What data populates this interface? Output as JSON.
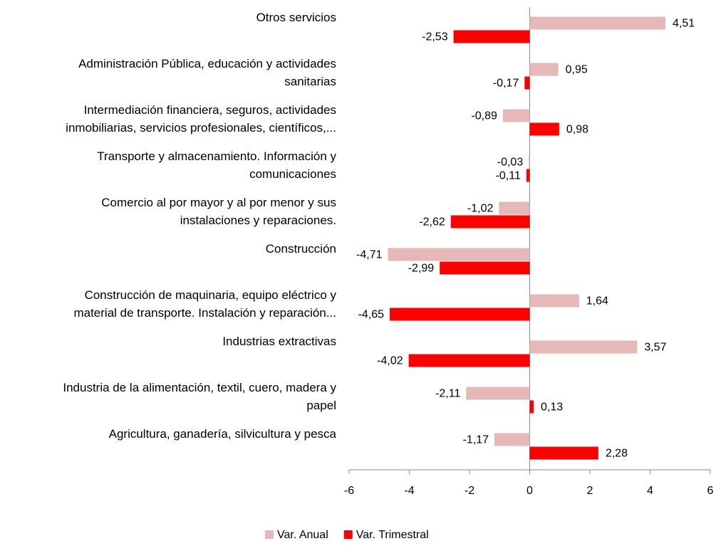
{
  "chart_data": {
    "type": "bar",
    "orientation": "horizontal",
    "categories": [
      "Otros servicios",
      "Administración Pública, educación y actividades\nsanitarias",
      "Intermediación financiera, seguros, actividades\ninmobiliarias, servicios profesionales, científicos,...",
      "Transporte y almacenamiento. Información y\ncomunicaciones",
      "Comercio al por mayor y al por menor y sus\ninstalaciones y reparaciones.",
      "Construcción",
      "Construcción de maquinaria, equipo eléctrico y\nmaterial de transporte. Instalación y reparación...",
      "Industrias extractivas",
      "Industria de la alimentación, textil, cuero, madera y\npapel",
      "Agricultura, ganadería, silvicultura y pesca"
    ],
    "series": [
      {
        "name": "Var. Anual",
        "color": "#e6b8b7",
        "values": [
          4.51,
          0.95,
          -0.89,
          -0.03,
          -1.02,
          -4.71,
          1.64,
          3.57,
          -2.11,
          -1.17
        ],
        "value_labels": [
          "4,51",
          "0,95",
          "-0,89",
          "-0,03",
          "-1,02",
          "-4,71",
          "1,64",
          "3,57",
          "-2,11",
          "-1,17"
        ]
      },
      {
        "name": "Var. Trimestral",
        "color": "#ff0000",
        "values": [
          -2.53,
          -0.17,
          0.98,
          -0.11,
          -2.62,
          -2.99,
          -4.65,
          -4.02,
          0.13,
          2.28
        ],
        "value_labels": [
          "-2,53",
          "-0,17",
          "0,98",
          "-0,11",
          "-2,62",
          "-2,99",
          "-4,65",
          "-4,02",
          "0,13",
          "2,28"
        ]
      }
    ],
    "xlim": [
      -6,
      6
    ],
    "xticks": [
      -6,
      -4,
      -2,
      0,
      2,
      4,
      6
    ],
    "legend": "bottom"
  }
}
